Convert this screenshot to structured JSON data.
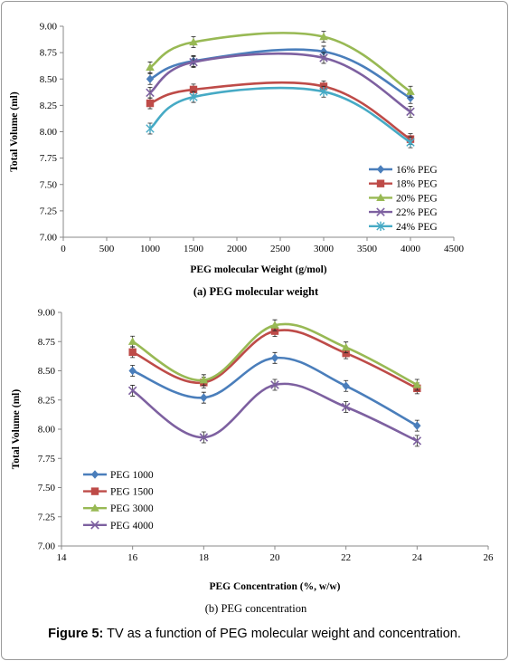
{
  "figure": {
    "label": "Figure 5:",
    "text": " TV as a function of PEG molecular weight and concentration."
  },
  "chart_data": [
    {
      "type": "line",
      "caption": "(a) PEG molecular weight",
      "xlabel": "PEG molecular Weight (g/mol)",
      "ylabel": "Total Volume (ml)",
      "xlim": [
        0,
        4500
      ],
      "ylim": [
        7.0,
        9.0
      ],
      "xticks": [
        "0",
        "500",
        "1000",
        "1500",
        "2000",
        "2500",
        "3000",
        "3500",
        "4000",
        "4500"
      ],
      "yticks": [
        "7.00",
        "7.25",
        "7.50",
        "7.75",
        "8.00",
        "8.25",
        "8.50",
        "8.75",
        "9.00"
      ],
      "x": [
        1000,
        1500,
        3000,
        4000
      ],
      "legend_position": "bottom-right",
      "grid": false,
      "series": [
        {
          "name": "16% PEG",
          "marker": "diamond",
          "color": "#4a7ebb",
          "values": [
            8.5,
            8.67,
            8.76,
            8.32
          ]
        },
        {
          "name": "18% PEG",
          "marker": "square",
          "color": "#be4b48",
          "values": [
            8.27,
            8.4,
            8.43,
            7.93
          ]
        },
        {
          "name": "20% PEG",
          "marker": "triangle",
          "color": "#98b954",
          "values": [
            8.61,
            8.85,
            8.9,
            8.38
          ]
        },
        {
          "name": "22% PEG",
          "marker": "x",
          "color": "#7d60a0",
          "values": [
            8.37,
            8.66,
            8.7,
            8.19
          ]
        },
        {
          "name": "24% PEG",
          "marker": "star",
          "color": "#46aac5",
          "values": [
            8.03,
            8.33,
            8.38,
            7.9
          ]
        }
      ]
    },
    {
      "type": "line",
      "caption": "(b) PEG concentration",
      "xlabel": "PEG Concentration (%, w/w)",
      "ylabel": "Total Volume (ml)",
      "xlim": [
        14,
        26
      ],
      "ylim": [
        7.0,
        9.0
      ],
      "xticks": [
        "14",
        "16",
        "18",
        "20",
        "22",
        "24",
        "26"
      ],
      "yticks": [
        "7.00",
        "7.25",
        "7.50",
        "7.75",
        "8.00",
        "8.25",
        "8.50",
        "8.75",
        "9.00"
      ],
      "x": [
        16,
        18,
        20,
        22,
        24
      ],
      "legend_position": "bottom-left",
      "grid": false,
      "series": [
        {
          "name": "PEG 1000",
          "marker": "diamond",
          "color": "#4a7ebb",
          "values": [
            8.5,
            8.27,
            8.61,
            8.37,
            8.03
          ]
        },
        {
          "name": "PEG 1500",
          "marker": "square",
          "color": "#be4b48",
          "values": [
            8.66,
            8.4,
            8.84,
            8.65,
            8.35
          ]
        },
        {
          "name": "PEG 3000",
          "marker": "triangle",
          "color": "#98b954",
          "values": [
            8.75,
            8.42,
            8.89,
            8.7,
            8.38
          ]
        },
        {
          "name": "PEG 4000",
          "marker": "x",
          "color": "#7d60a0",
          "values": [
            8.33,
            7.93,
            8.38,
            8.19,
            7.9
          ]
        }
      ]
    }
  ]
}
